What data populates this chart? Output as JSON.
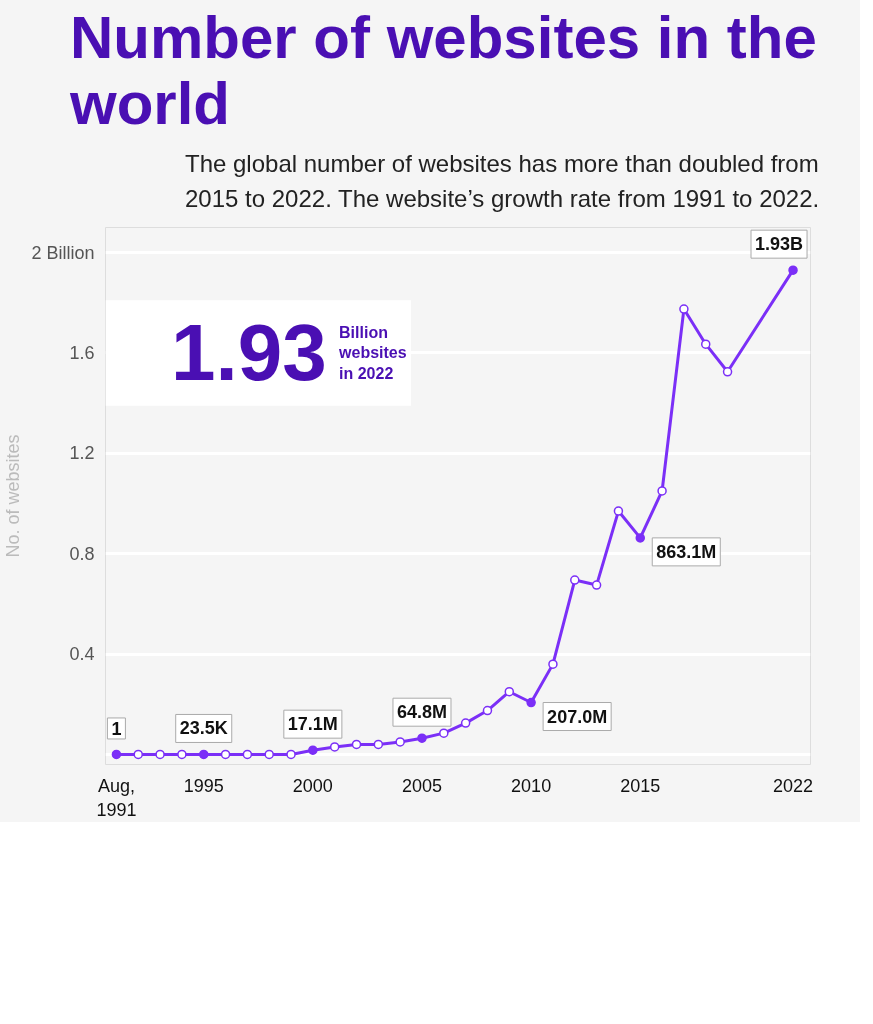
{
  "chart_data": {
    "type": "line",
    "title": "Number of websites in the world",
    "subtitle": "The global number of websites has more than doubled from 2015 to 2022. The website’s growth rate from 1991 to 2022.",
    "ylabel": "No. of websites",
    "annotations": [
      "1.93",
      "Billion websites in 2022",
      {
        "text": "1",
        "x": 1991,
        "y": 1e-09
      },
      {
        "text": "23.5K",
        "x": 1995,
        "y": 2.35e-05
      },
      {
        "text": "17.1M",
        "x": 2000,
        "y": 0.0171
      },
      {
        "text": "64.8M",
        "x": 2005,
        "y": 0.0648
      },
      {
        "text": "207.0M",
        "x": 2010,
        "y": 0.207
      },
      {
        "text": "863.1M",
        "x": 2015,
        "y": 0.8631
      },
      {
        "text": "1.93B",
        "x": 2022,
        "y": 1.93
      }
    ],
    "x": [
      1991,
      1992,
      1993,
      1994,
      1995,
      1996,
      1997,
      1998,
      1999,
      2000,
      2001,
      2002,
      2003,
      2004,
      2005,
      2006,
      2007,
      2008,
      2009,
      2010,
      2011,
      2012,
      2013,
      2014,
      2015,
      2016,
      2017,
      2018,
      2019,
      2022
    ],
    "series": [
      {
        "color": "#7b2ff7",
        "values": [
          1e-09,
          0,
          0,
          0,
          2.35e-05,
          0,
          0,
          0,
          0,
          0.0171,
          0.03,
          0.04,
          0.04,
          0.05,
          0.0648,
          0.085,
          0.125,
          0.175,
          0.25,
          0.207,
          0.36,
          0.695,
          0.675,
          0.97,
          0.8631,
          1.05,
          1.775,
          1.635,
          1.525,
          1.93
        ]
      }
    ],
    "xlim": [
      1990.5,
      2022.8
    ],
    "xticks": [
      {
        "value": 1991,
        "label": "Aug,\n1991"
      },
      1995,
      2000,
      2005,
      2010,
      2015,
      2022
    ],
    "ylim": [
      -0.04,
      2.1
    ],
    "yticks": [
      {
        "value": 0,
        "label": null
      },
      0.4,
      0.8,
      1.2,
      1.6,
      {
        "value": 2,
        "label": "2 Billion"
      }
    ],
    "grid": "y",
    "marker": "circle",
    "line_style": "solid"
  }
}
